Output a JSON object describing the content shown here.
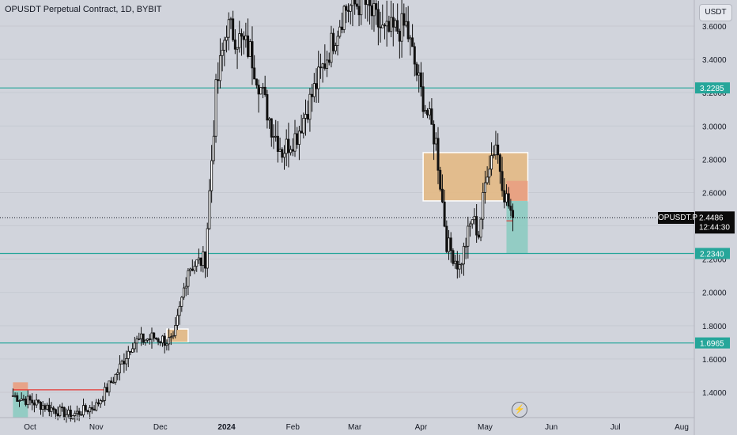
{
  "header": {
    "title": "OPUSDT Perpetual Contract, 1D, BYBIT"
  },
  "currency_button": {
    "label": "USDT"
  },
  "symbol_tag": {
    "label": "OPUSDT.P"
  },
  "price_tag": {
    "price": "2.4486",
    "countdown": "12:44:30"
  },
  "levels": [
    {
      "label": "3.2285",
      "value": 3.2285,
      "color": "#26a69a"
    },
    {
      "label": "2.2340",
      "value": 2.234,
      "color": "#26a69a"
    },
    {
      "label": "1.6965",
      "value": 1.6965,
      "color": "#26a69a"
    }
  ],
  "colors": {
    "background": "#d1d4dc",
    "candles": "#111111",
    "level_line": "#26a69a",
    "zone_fill": "#e3bb88",
    "stop_fill": "#e8a083",
    "target_fill": "#8fcbc2",
    "entry_line": "#e53935"
  },
  "chart_data": {
    "type": "candlestick",
    "title": "OPUSDT Perpetual Contract, 1D, BYBIT",
    "x_axis": {
      "ticks": [
        {
          "label": "Oct",
          "date": "2023-10-01"
        },
        {
          "label": "Nov",
          "date": "2023-11-01"
        },
        {
          "label": "Dec",
          "date": "2023-12-01"
        },
        {
          "label": "2024",
          "date": "2024-01-01",
          "bold": true
        },
        {
          "label": "Feb",
          "date": "2024-02-01"
        },
        {
          "label": "Mar",
          "date": "2024-03-01"
        },
        {
          "label": "Apr",
          "date": "2024-04-01"
        },
        {
          "label": "May",
          "date": "2024-05-01"
        },
        {
          "label": "Jun",
          "date": "2024-06-01"
        },
        {
          "label": "Jul",
          "date": "2024-07-01"
        },
        {
          "label": "Aug",
          "date": "2024-08-01"
        }
      ]
    },
    "y_axis": {
      "ticks": [
        "1.4000",
        "1.6000",
        "1.8000",
        "2.0000",
        "2.2000",
        "2.4000",
        "2.6000",
        "2.8000",
        "3.0000",
        "3.2000",
        "3.4000",
        "3.6000"
      ],
      "range": [
        1.24,
        3.75
      ]
    },
    "current_price": 2.4486,
    "horizontal_levels": [
      3.2285,
      2.234,
      1.6965
    ],
    "approx_close_path": [
      {
        "date": "2023-09-23",
        "close": 1.38
      },
      {
        "date": "2023-10-05",
        "close": 1.33
      },
      {
        "date": "2023-10-20",
        "close": 1.26
      },
      {
        "date": "2023-11-01",
        "close": 1.32
      },
      {
        "date": "2023-11-10",
        "close": 1.5
      },
      {
        "date": "2023-11-18",
        "close": 1.7
      },
      {
        "date": "2023-11-28",
        "close": 1.73
      },
      {
        "date": "2023-12-07",
        "close": 1.7
      },
      {
        "date": "2023-12-14",
        "close": 2.15
      },
      {
        "date": "2023-12-22",
        "close": 2.2
      },
      {
        "date": "2023-12-27",
        "close": 3.2
      },
      {
        "date": "2024-01-01",
        "close": 3.6
      },
      {
        "date": "2024-01-12",
        "close": 3.45
      },
      {
        "date": "2024-01-22",
        "close": 3.0
      },
      {
        "date": "2024-01-27",
        "close": 2.85
      },
      {
        "date": "2024-02-03",
        "close": 2.95
      },
      {
        "date": "2024-02-15",
        "close": 3.35
      },
      {
        "date": "2024-02-25",
        "close": 3.7
      },
      {
        "date": "2024-03-05",
        "close": 3.75
      },
      {
        "date": "2024-03-15",
        "close": 3.55
      },
      {
        "date": "2024-03-25",
        "close": 3.6
      },
      {
        "date": "2024-04-01",
        "close": 3.2
      },
      {
        "date": "2024-04-08",
        "close": 2.9
      },
      {
        "date": "2024-04-13",
        "close": 2.3
      },
      {
        "date": "2024-04-19",
        "close": 2.15
      },
      {
        "date": "2024-04-25",
        "close": 2.45
      },
      {
        "date": "2024-04-28",
        "close": 2.35
      },
      {
        "date": "2024-05-02",
        "close": 2.75
      },
      {
        "date": "2024-05-06",
        "close": 2.9
      },
      {
        "date": "2024-05-10",
        "close": 2.6
      },
      {
        "date": "2024-05-14",
        "close": 2.4486
      }
    ],
    "zones": [
      {
        "kind": "supply",
        "x0": "2024-04-02",
        "x1": "2024-05-21",
        "y0": 2.55,
        "y1": 2.84,
        "color": "#e3bb88",
        "outlined": true
      },
      {
        "kind": "supply",
        "x0": "2023-12-04",
        "x1": "2023-12-14",
        "y0": 1.7,
        "y1": 1.78,
        "color": "#e3bb88",
        "outlined": true
      },
      {
        "kind": "stop",
        "x0": "2024-05-11",
        "x1": "2024-05-21",
        "y0": 2.55,
        "y1": 2.67,
        "color": "#e8a083"
      },
      {
        "kind": "target",
        "x0": "2024-05-11",
        "x1": "2024-05-21",
        "y0": 2.234,
        "y1": 2.55,
        "color": "#8fcbc2"
      },
      {
        "kind": "target",
        "x0": "2023-09-23",
        "x1": "2023-09-30",
        "y0": 1.25,
        "y1": 1.41,
        "color": "#8fcbc2"
      },
      {
        "kind": "stop",
        "x0": "2023-09-23",
        "x1": "2023-09-30",
        "y0": 1.41,
        "y1": 1.46,
        "color": "#e8a083"
      }
    ],
    "entry_lines": [
      {
        "x0": "2024-05-11",
        "x1": "2024-05-14",
        "y": 2.43
      },
      {
        "x0": "2023-09-23",
        "x1": "2023-11-05",
        "y": 1.415
      }
    ]
  }
}
